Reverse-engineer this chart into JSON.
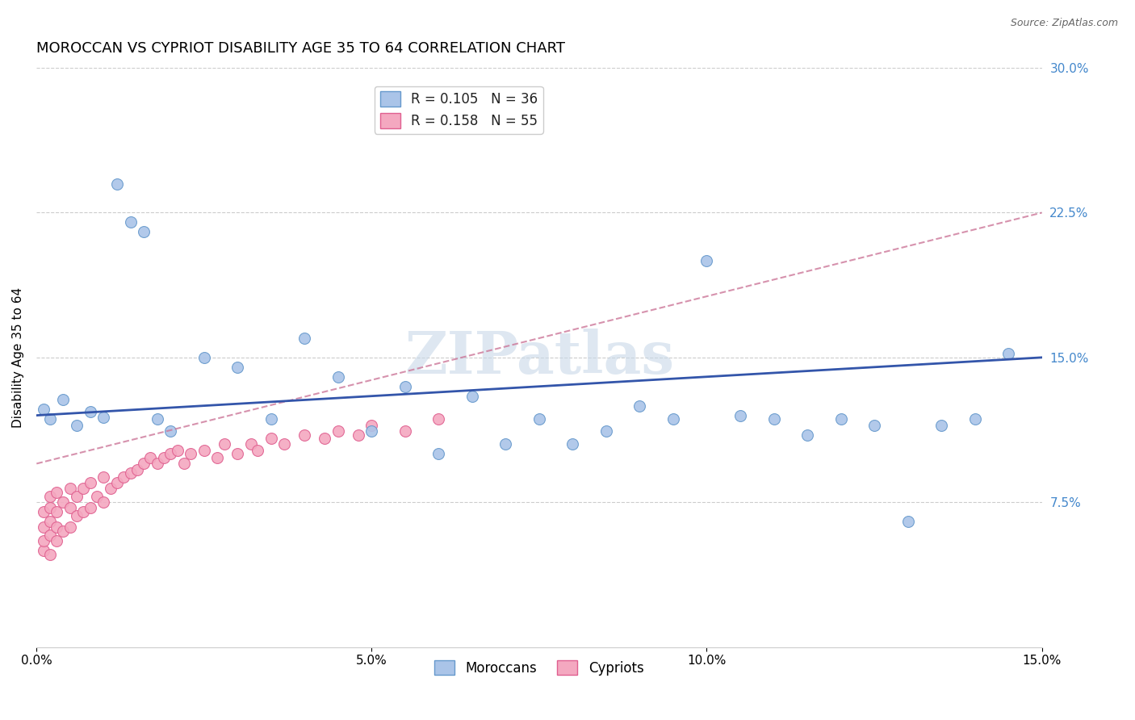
{
  "title": "MOROCCAN VS CYPRIOT DISABILITY AGE 35 TO 64 CORRELATION CHART",
  "source_text": "Source: ZipAtlas.com",
  "ylabel": "Disability Age 35 to 64",
  "xlim": [
    0.0,
    0.15
  ],
  "ylim": [
    0.0,
    0.3
  ],
  "xticks": [
    0.0,
    0.05,
    0.1,
    0.15
  ],
  "xtick_labels": [
    "0.0%",
    "5.0%",
    "10.0%",
    "15.0%"
  ],
  "yticks": [
    0.075,
    0.15,
    0.225,
    0.3
  ],
  "ytick_labels": [
    "7.5%",
    "15.0%",
    "22.5%",
    "30.0%"
  ],
  "moroccan_x": [
    0.001,
    0.002,
    0.004,
    0.006,
    0.008,
    0.01,
    0.012,
    0.014,
    0.016,
    0.018,
    0.02,
    0.025,
    0.03,
    0.035,
    0.04,
    0.045,
    0.05,
    0.055,
    0.06,
    0.065,
    0.07,
    0.075,
    0.08,
    0.085,
    0.09,
    0.095,
    0.1,
    0.105,
    0.11,
    0.115,
    0.12,
    0.125,
    0.13,
    0.135,
    0.14,
    0.145
  ],
  "moroccan_y": [
    0.123,
    0.118,
    0.128,
    0.115,
    0.122,
    0.119,
    0.24,
    0.22,
    0.215,
    0.118,
    0.112,
    0.15,
    0.145,
    0.118,
    0.16,
    0.14,
    0.112,
    0.135,
    0.1,
    0.13,
    0.105,
    0.118,
    0.105,
    0.112,
    0.125,
    0.118,
    0.2,
    0.12,
    0.118,
    0.11,
    0.118,
    0.115,
    0.065,
    0.115,
    0.118,
    0.152
  ],
  "cypriot_x": [
    0.001,
    0.001,
    0.001,
    0.001,
    0.002,
    0.002,
    0.002,
    0.002,
    0.002,
    0.003,
    0.003,
    0.003,
    0.003,
    0.004,
    0.004,
    0.005,
    0.005,
    0.005,
    0.006,
    0.006,
    0.007,
    0.007,
    0.008,
    0.008,
    0.009,
    0.01,
    0.01,
    0.011,
    0.012,
    0.013,
    0.014,
    0.015,
    0.016,
    0.017,
    0.018,
    0.019,
    0.02,
    0.021,
    0.022,
    0.023,
    0.025,
    0.027,
    0.028,
    0.03,
    0.032,
    0.033,
    0.035,
    0.037,
    0.04,
    0.043,
    0.045,
    0.048,
    0.05,
    0.055,
    0.06
  ],
  "cypriot_y": [
    0.05,
    0.055,
    0.062,
    0.07,
    0.048,
    0.058,
    0.065,
    0.072,
    0.078,
    0.055,
    0.062,
    0.07,
    0.08,
    0.06,
    0.075,
    0.062,
    0.072,
    0.082,
    0.068,
    0.078,
    0.07,
    0.082,
    0.072,
    0.085,
    0.078,
    0.075,
    0.088,
    0.082,
    0.085,
    0.088,
    0.09,
    0.092,
    0.095,
    0.098,
    0.095,
    0.098,
    0.1,
    0.102,
    0.095,
    0.1,
    0.102,
    0.098,
    0.105,
    0.1,
    0.105,
    0.102,
    0.108,
    0.105,
    0.11,
    0.108,
    0.112,
    0.11,
    0.115,
    0.112,
    0.118
  ],
  "moroccan_color": "#aac4e8",
  "cypriot_color": "#f4a8c0",
  "moroccan_edge": "#6699cc",
  "cypriot_edge": "#e06090",
  "moroccan_line_color": "#3355aa",
  "cypriot_line_color": "#cc7799",
  "moroccan_R": 0.105,
  "moroccan_N": 36,
  "cypriot_R": 0.158,
  "cypriot_N": 55,
  "watermark_text": "ZIPatlas",
  "background_color": "#ffffff",
  "grid_color": "#cccccc",
  "title_fontsize": 13,
  "axis_label_fontsize": 11,
  "tick_fontsize": 11,
  "marker_size": 10,
  "right_tick_color": "#4488cc"
}
